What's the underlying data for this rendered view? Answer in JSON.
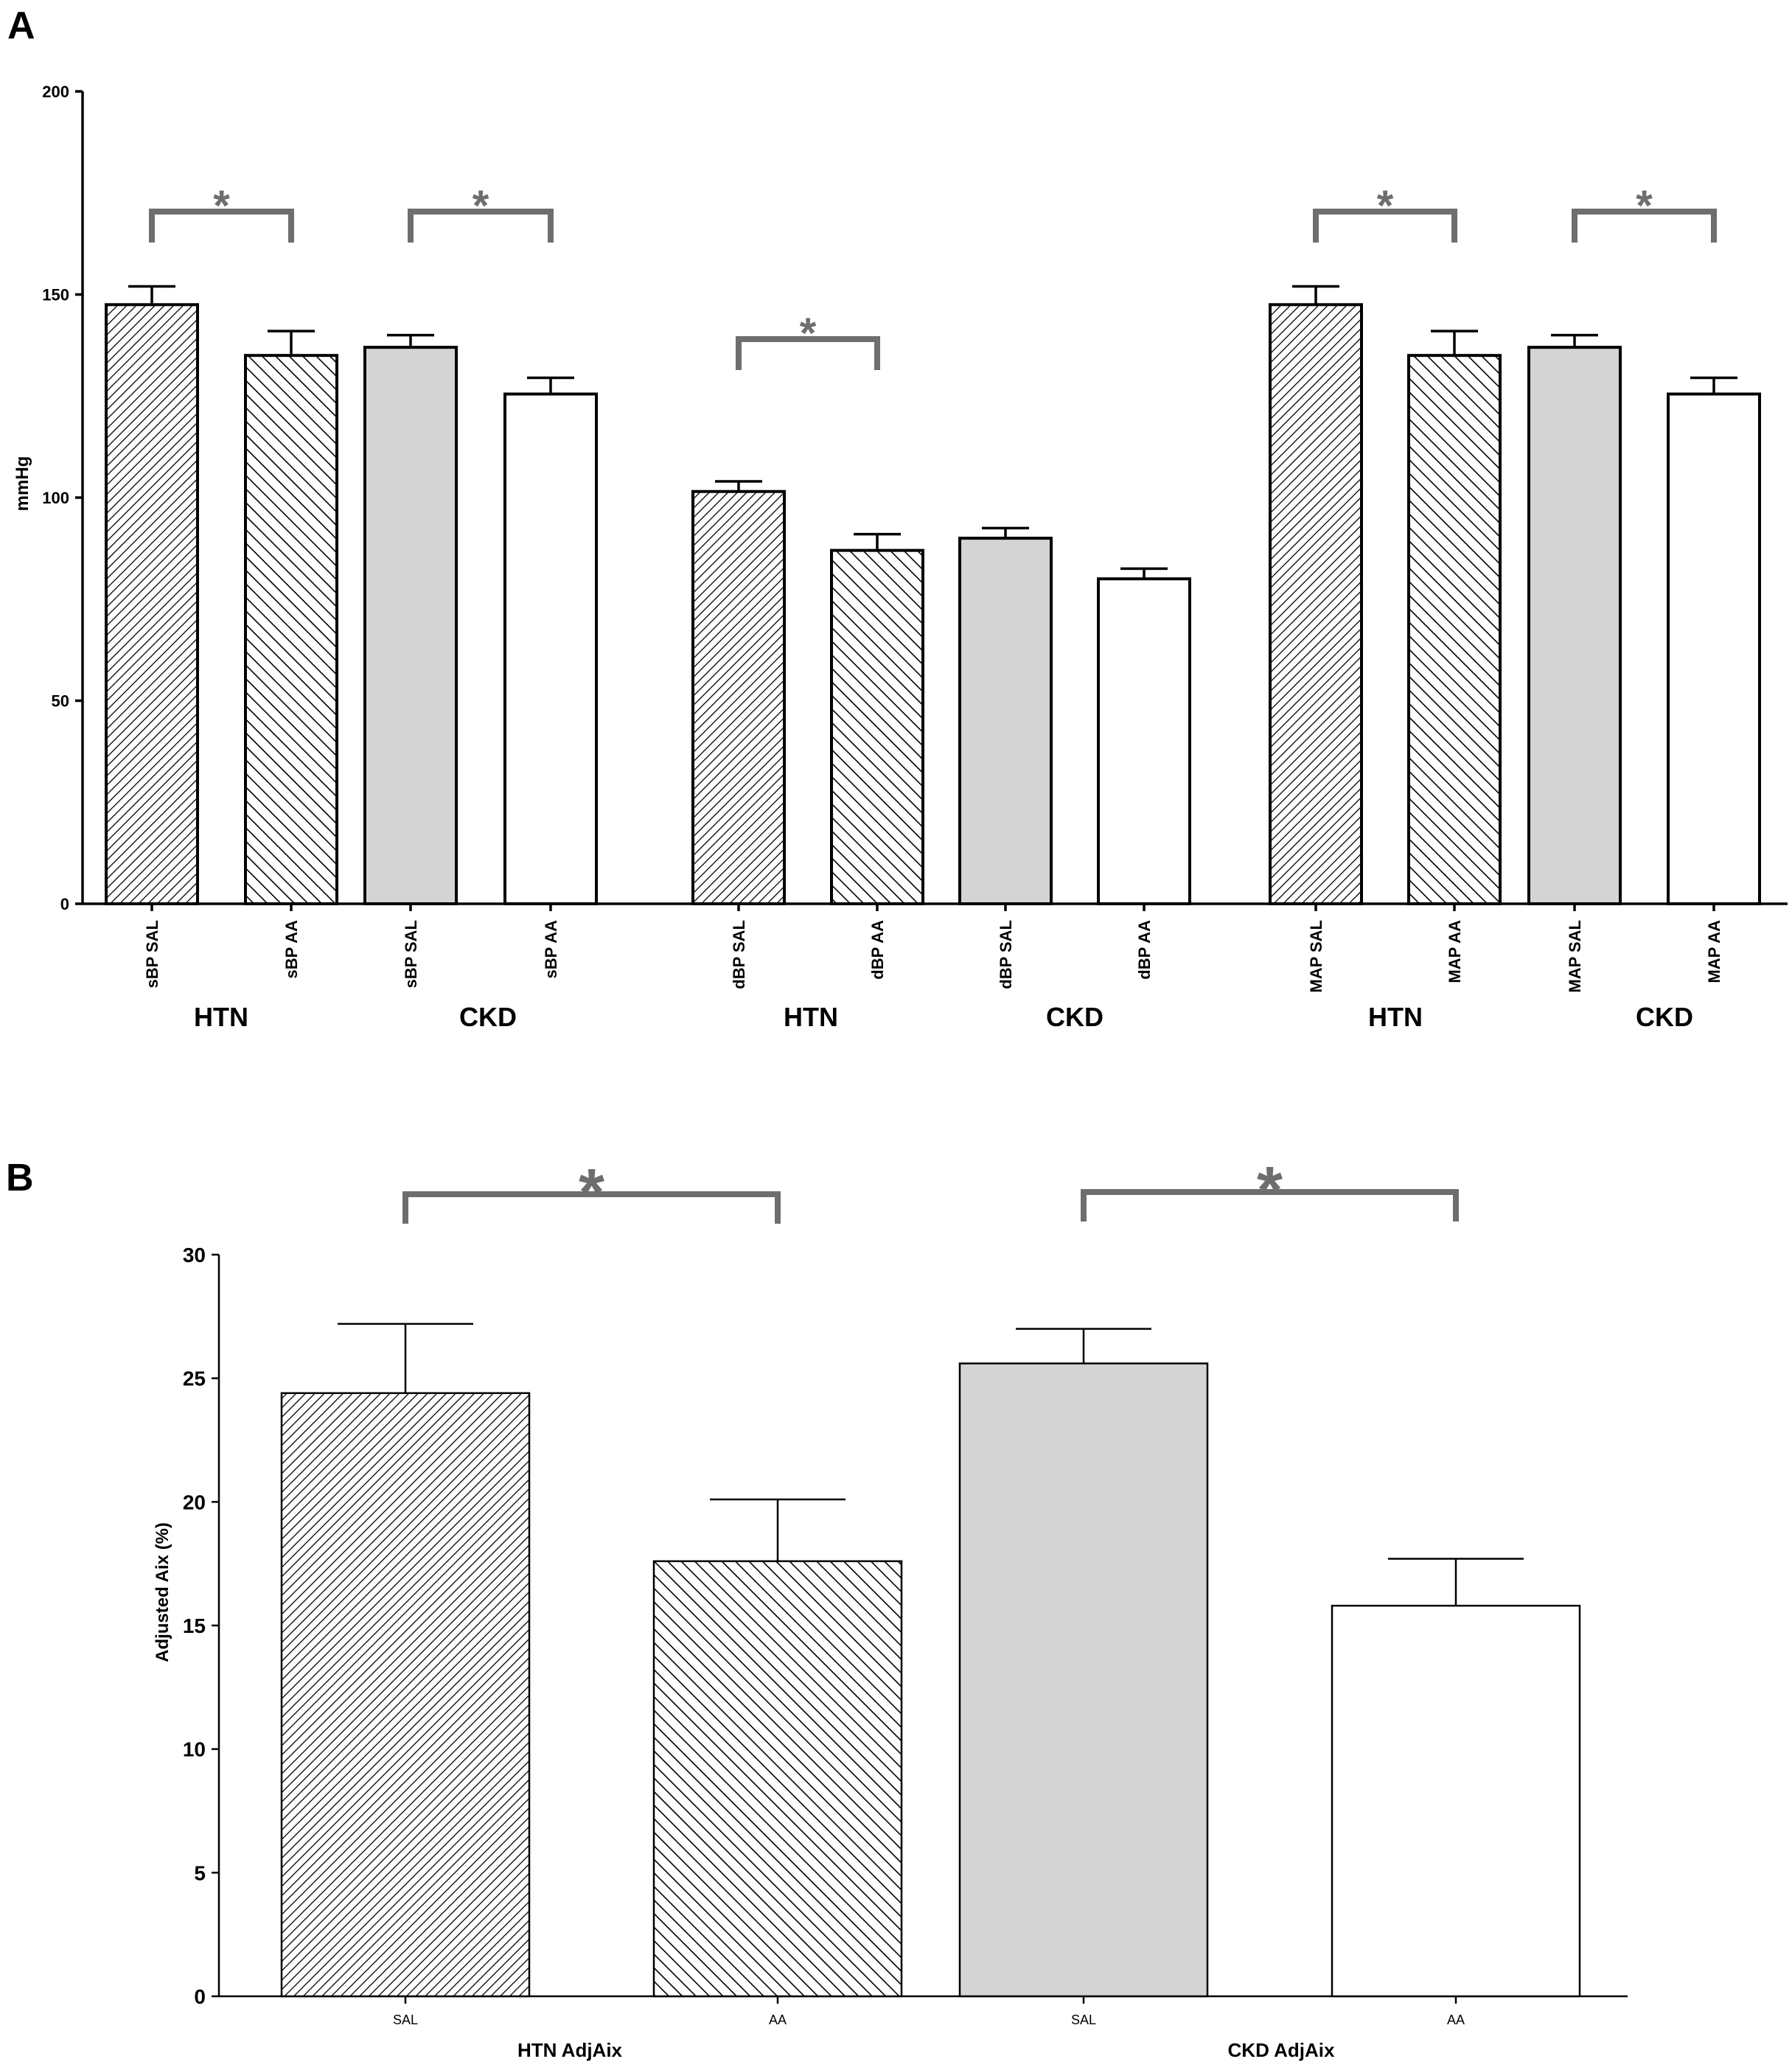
{
  "colors": {
    "axis": "#000000",
    "bar_outline": "#000000",
    "gray_fill": "#d4d4d4",
    "white_fill": "#ffffff",
    "hatch": "#000000",
    "significance": "#6e6e6e"
  },
  "chart_data": [
    {
      "panel_label": "A",
      "type": "bar",
      "ylabel": "mmHg",
      "ylim": [
        0,
        200
      ],
      "yticks": [
        0,
        50,
        100,
        150,
        200
      ],
      "grid": false,
      "bars": [
        {
          "label": "sBP SAL",
          "value": 147.5,
          "error": 4.5,
          "fill": "hatch-dense"
        },
        {
          "label": "sBP AA",
          "value": 135,
          "error": 6,
          "fill": "hatch-wide"
        },
        {
          "label": "sBP SAL",
          "value": 137,
          "error": 3,
          "fill": "gray"
        },
        {
          "label": "sBP AA",
          "value": 125.5,
          "error": 4,
          "fill": "white"
        },
        {
          "label": "dBP SAL",
          "value": 101.5,
          "error": 2.5,
          "fill": "hatch-dense"
        },
        {
          "label": "dBP AA",
          "value": 87,
          "error": 4,
          "fill": "hatch-wide"
        },
        {
          "label": "dBP SAL",
          "value": 90,
          "error": 2.5,
          "fill": "gray"
        },
        {
          "label": "dBP AA",
          "value": 80,
          "error": 2.5,
          "fill": "white"
        },
        {
          "label": "MAP SAL",
          "value": 147.5,
          "error": 4.5,
          "fill": "hatch-dense"
        },
        {
          "label": "MAP AA",
          "value": 135,
          "error": 6,
          "fill": "hatch-wide"
        },
        {
          "label": "MAP SAL",
          "value": 137,
          "error": 3,
          "fill": "gray"
        },
        {
          "label": "MAP AA",
          "value": 125.5,
          "error": 4,
          "fill": "white"
        }
      ],
      "group_labels": [
        "HTN",
        "CKD",
        "HTN",
        "CKD",
        "HTN",
        "CKD"
      ],
      "significance": [
        {
          "bars": [
            0,
            1
          ],
          "symbol": "*"
        },
        {
          "bars": [
            2,
            3
          ],
          "symbol": "*"
        },
        {
          "bars": [
            4,
            5
          ],
          "symbol": "*"
        },
        {
          "bars": [
            8,
            9
          ],
          "symbol": "*"
        },
        {
          "bars": [
            10,
            11
          ],
          "symbol": "*"
        }
      ]
    },
    {
      "panel_label": "B",
      "type": "bar",
      "ylabel": "Adjusted Aix (%)",
      "ylim": [
        0,
        30
      ],
      "yticks": [
        0,
        5,
        10,
        15,
        20,
        25,
        30
      ],
      "grid": false,
      "bars": [
        {
          "label": "SAL",
          "value": 24.4,
          "error": 2.8,
          "fill": "hatch-dense"
        },
        {
          "label": "AA",
          "value": 17.6,
          "error": 2.5,
          "fill": "hatch-wide"
        },
        {
          "label": "SAL",
          "value": 25.6,
          "error": 1.4,
          "fill": "gray"
        },
        {
          "label": "AA",
          "value": 15.8,
          "error": 1.9,
          "fill": "white"
        }
      ],
      "group_labels": [
        "HTN AdjAix",
        "CKD AdjAix"
      ],
      "significance": [
        {
          "bars": [
            0,
            1
          ],
          "symbol": "*"
        },
        {
          "bars": [
            2,
            3
          ],
          "symbol": "*"
        }
      ]
    }
  ]
}
